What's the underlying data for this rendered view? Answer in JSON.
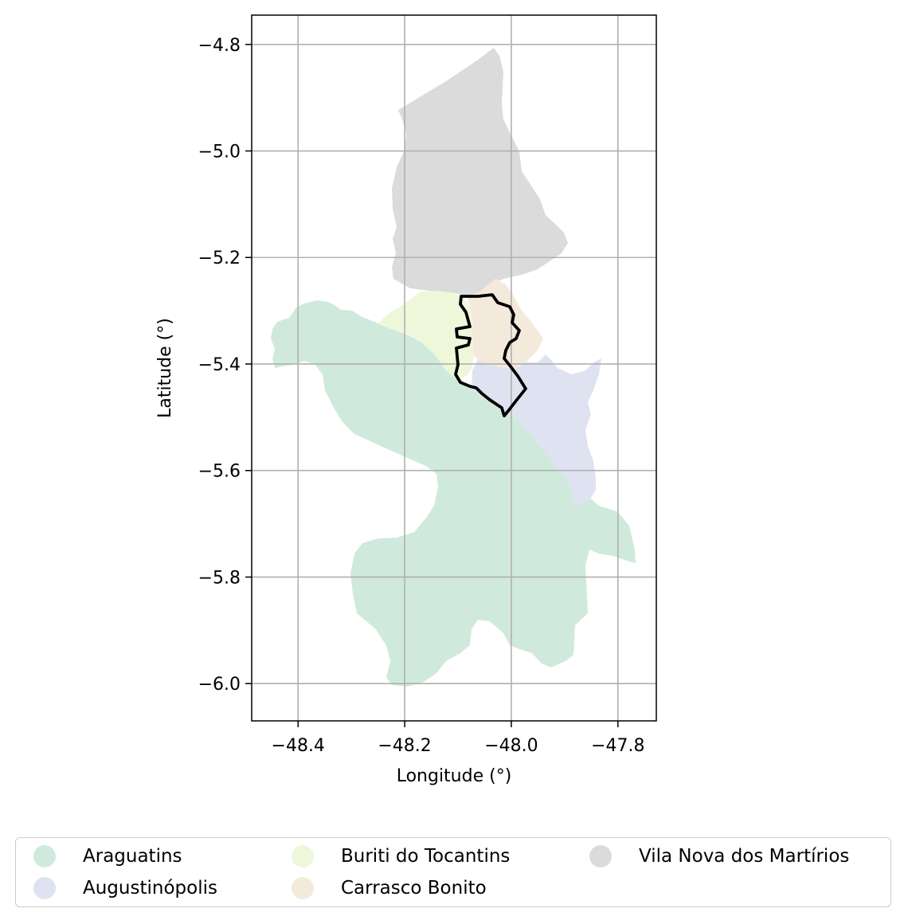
{
  "chart_data": {
    "type": "map",
    "xlabel": "Longitude (°)",
    "ylabel": "Latitude (°)",
    "xlim": [
      -48.487,
      -47.728
    ],
    "ylim": [
      -6.07,
      -4.745
    ],
    "x_ticks": [
      -48.4,
      -48.2,
      -48.0,
      -47.8
    ],
    "y_ticks": [
      -4.8,
      -5.0,
      -5.2,
      -5.4,
      -5.6,
      -5.8,
      -6.0
    ],
    "x_tick_labels": [
      "−48.4",
      "−48.2",
      "−48.0",
      "−47.8"
    ],
    "y_tick_labels": [
      "−4.8",
      "−5.0",
      "−5.2",
      "−5.4",
      "−5.6",
      "−5.8",
      "−6.0"
    ],
    "grid": true,
    "legend_position": "bottom-center",
    "regions": [
      {
        "name": "Araguatins",
        "color": "#cfeadc"
      },
      {
        "name": "Augustinópolis",
        "color": "#dfe3f1"
      },
      {
        "name": "Buriti do Tocantins",
        "color": "#eff7da"
      },
      {
        "name": "Carrasco Bonito",
        "color": "#f4eadc"
      },
      {
        "name": "Vila Nova dos Martírios",
        "color": "#dbdbdb"
      }
    ],
    "highlight_outline_color": "#000000"
  }
}
